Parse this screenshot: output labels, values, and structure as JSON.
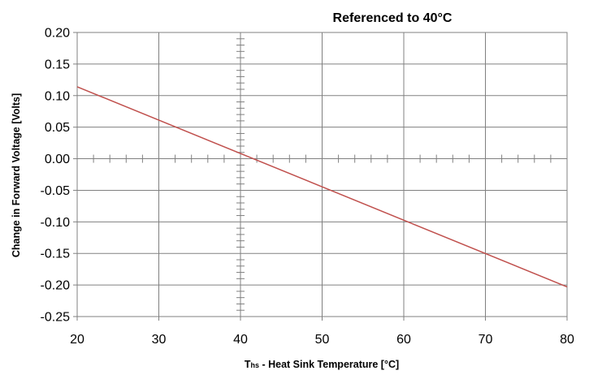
{
  "chart_data": {
    "type": "line",
    "title": "Referenced to 40°C",
    "xlabel": {
      "main": "T",
      "subscript": "hs",
      "rest": " - Heat Sink Temperature [°C]"
    },
    "ylabel": "Change in Forward Voltage [Volts]",
    "xlim": [
      20,
      80
    ],
    "ylim": [
      -0.25,
      0.2
    ],
    "x_ticks": [
      "20",
      "30",
      "40",
      "50",
      "60",
      "70",
      "80"
    ],
    "y_ticks": [
      "0.20",
      "0.15",
      "0.10",
      "0.05",
      "0.00",
      "-0.05",
      "-0.10",
      "-0.15",
      "-0.20",
      "-0.25"
    ],
    "grid": true,
    "series": [
      {
        "color": "#c0504d",
        "x": [
          20,
          80
        ],
        "y": [
          0.114,
          -0.203
        ]
      }
    ]
  }
}
